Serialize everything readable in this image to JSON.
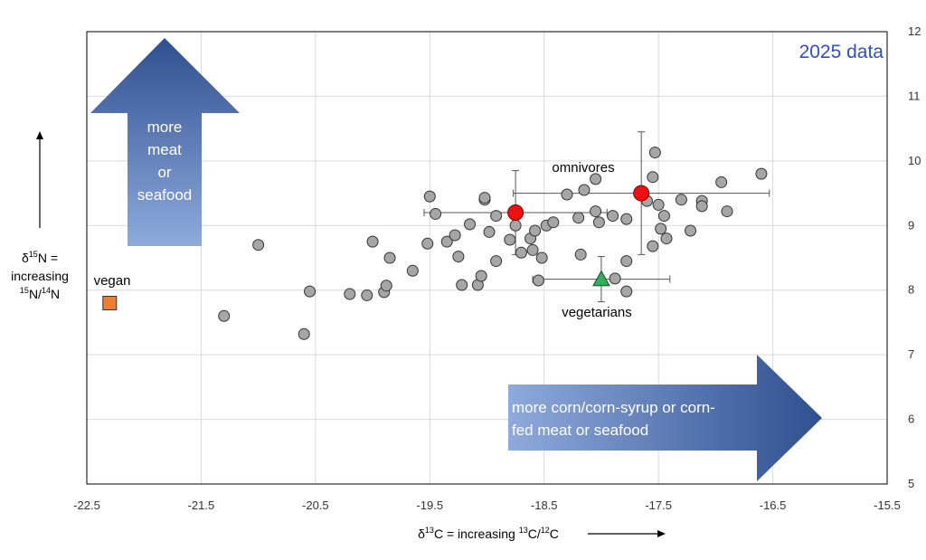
{
  "chart_data": {
    "type": "scatter",
    "annotation_year": "2025 data",
    "xlim": [
      -22.5,
      -15.5
    ],
    "ylim": [
      5,
      12
    ],
    "x_ticks": [
      "-22.5",
      "-21.5",
      "-20.5",
      "-19.5",
      "-18.5",
      "-17.5",
      "-16.5",
      "-15.5"
    ],
    "x_tick_values": [
      -22.5,
      -21.5,
      -20.5,
      -19.5,
      -18.5,
      -17.5,
      -16.5,
      -15.5
    ],
    "y_ticks": [
      "5",
      "6",
      "7",
      "8",
      "9",
      "10",
      "11",
      "12"
    ],
    "y_tick_values": [
      5,
      6,
      7,
      8,
      9,
      10,
      11,
      12
    ],
    "grid": true,
    "xlabel": {
      "pre": "δ",
      "sup1": "13",
      "mid": "C  =  increasing ",
      "sup2": "13",
      "mid2": "C/",
      "sup3": "12",
      "post": "C"
    },
    "ylabel": {
      "line1_pre": "δ",
      "line1_sup": "15",
      "line1_post": "N =",
      "line2": "increasing",
      "line3_sup1": "15",
      "line3_mid": "N/",
      "line3_sup2": "14",
      "line3_post": "N"
    },
    "arrow_up": {
      "lines": [
        "more",
        "meat",
        "or",
        "seafood"
      ]
    },
    "arrow_right": {
      "lines": [
        "more corn/corn-syrup or corn-",
        "fed meat or seafood"
      ]
    },
    "colors": {
      "individual": "#a6a6a6",
      "omnivore": "#ee1111",
      "vegetarian": "#2fb05a",
      "vegan": "#ed7d31",
      "annotation": "#2f4fc8",
      "arrow_dark": "#2f4f8f",
      "arrow_light": "#8faadc"
    },
    "series": [
      {
        "name": "individuals",
        "marker": "circle",
        "points": [
          [
            -21.3,
            7.6
          ],
          [
            -21.0,
            8.7
          ],
          [
            -20.6,
            7.32
          ],
          [
            -20.55,
            7.98
          ],
          [
            -20.2,
            7.94
          ],
          [
            -20.05,
            7.92
          ],
          [
            -20.0,
            8.75
          ],
          [
            -19.9,
            7.97
          ],
          [
            -19.88,
            8.07
          ],
          [
            -19.85,
            8.5
          ],
          [
            -19.65,
            8.3
          ],
          [
            -19.52,
            8.72
          ],
          [
            -19.5,
            9.45
          ],
          [
            -19.45,
            9.18
          ],
          [
            -19.35,
            8.75
          ],
          [
            -19.28,
            8.85
          ],
          [
            -19.25,
            8.52
          ],
          [
            -19.22,
            8.08
          ],
          [
            -19.15,
            9.02
          ],
          [
            -19.08,
            8.08
          ],
          [
            -19.05,
            8.22
          ],
          [
            -19.02,
            9.4
          ],
          [
            -19.02,
            9.43
          ],
          [
            -18.98,
            8.9
          ],
          [
            -18.92,
            8.45
          ],
          [
            -18.92,
            9.15
          ],
          [
            -18.8,
            8.78
          ],
          [
            -18.75,
            9.0
          ],
          [
            -18.7,
            8.58
          ],
          [
            -18.62,
            8.8
          ],
          [
            -18.6,
            8.62
          ],
          [
            -18.58,
            8.92
          ],
          [
            -18.55,
            8.15
          ],
          [
            -18.52,
            8.5
          ],
          [
            -18.48,
            9.0
          ],
          [
            -18.42,
            9.05
          ],
          [
            -18.3,
            9.48
          ],
          [
            -18.2,
            9.12
          ],
          [
            -18.18,
            8.55
          ],
          [
            -18.15,
            9.55
          ],
          [
            -18.05,
            9.72
          ],
          [
            -18.05,
            9.22
          ],
          [
            -18.02,
            9.05
          ],
          [
            -17.9,
            9.15
          ],
          [
            -17.88,
            8.18
          ],
          [
            -17.78,
            8.45
          ],
          [
            -17.78,
            7.98
          ],
          [
            -17.78,
            9.1
          ],
          [
            -17.6,
            9.38
          ],
          [
            -17.55,
            8.68
          ],
          [
            -17.55,
            9.75
          ],
          [
            -17.53,
            10.13
          ],
          [
            -17.5,
            9.32
          ],
          [
            -17.48,
            8.95
          ],
          [
            -17.45,
            9.15
          ],
          [
            -17.43,
            8.8
          ],
          [
            -17.3,
            9.4
          ],
          [
            -17.22,
            8.92
          ],
          [
            -17.12,
            9.38
          ],
          [
            -17.12,
            9.3
          ],
          [
            -16.95,
            9.67
          ],
          [
            -16.9,
            9.22
          ],
          [
            -16.6,
            9.8
          ]
        ]
      },
      {
        "name": "omnivores",
        "marker": "circle",
        "points": [
          [
            -18.75,
            9.2
          ]
        ],
        "xerr": [
          0.8
        ],
        "yerr": [
          0.65
        ]
      },
      {
        "name": "omnivores",
        "marker": "circle",
        "points": [
          [
            -17.65,
            9.5
          ]
        ],
        "xerr": [
          1.12
        ],
        "yerr": [
          0.95
        ]
      },
      {
        "name": "vegetarians",
        "marker": "triangle",
        "points": [
          [
            -18.0,
            8.17
          ]
        ],
        "xerr": [
          0.6
        ],
        "yerr": [
          0.35
        ]
      },
      {
        "name": "vegan",
        "marker": "square",
        "points": [
          [
            -22.3,
            7.8
          ]
        ]
      }
    ]
  }
}
